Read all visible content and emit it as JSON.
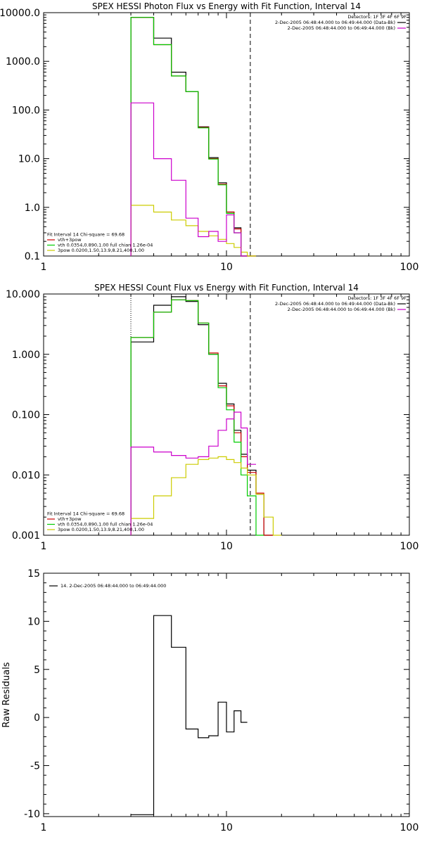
{
  "chart_data": [
    {
      "type": "line",
      "title": "SPEX HESSI Photon Flux vs Energy with Fit Function, Interval 14",
      "xscale": "log",
      "yscale": "log",
      "xlim": [
        1,
        100
      ],
      "ylim": [
        0.1,
        10000
      ],
      "xticks": [
        {
          "v": 1,
          "label": "1"
        },
        {
          "v": 10,
          "label": "10"
        },
        {
          "v": 100,
          "label": "100"
        }
      ],
      "yticks": [
        {
          "v": 0.1,
          "label": "0.1"
        },
        {
          "v": 1,
          "label": "1.0"
        },
        {
          "v": 10,
          "label": "10.0"
        },
        {
          "v": 100,
          "label": "100.0"
        },
        {
          "v": 1000,
          "label": "1000.0"
        },
        {
          "v": 10000,
          "label": "10000.0"
        }
      ],
      "vlines": [
        {
          "x": 3.0,
          "style": "dotted"
        },
        {
          "x": 13.5,
          "style": "dashed"
        }
      ],
      "legend_top_right": [
        {
          "text": "Detectors: 1F 3F 4F 6F 9F",
          "color": ""
        },
        {
          "text": "2-Dec-2005 06:48:44.000 to 06:49:44.000 (Data-Bk)",
          "color": "#000000"
        },
        {
          "text": "2-Dec-2005 06:48:44.000 to 06:49:44.000 (Bk)",
          "color": "#cc00cc"
        }
      ],
      "legend_bottom_left": [
        {
          "text": "Fit Interval 14    Chi-square = 69.68",
          "color": ""
        },
        {
          "text": "vth+3pow",
          "color": "#cc0000"
        },
        {
          "text": "vth 0.0354,0.890,1.00   full chian 1.26e-04",
          "color": "#00cc00"
        },
        {
          "text": "3pow 0.0200,1.50,13.9,8.21,400,1.00",
          "color": "#cccc00"
        }
      ],
      "edges": [
        3,
        4,
        5,
        6,
        7,
        8,
        9,
        10,
        11,
        12,
        13,
        14.5
      ],
      "series": [
        {
          "name": "Data-Bk",
          "color": "#000000",
          "values": [
            8000,
            3000,
            600,
            240,
            45,
            10.5,
            3.2,
            0.8,
            0.38,
            0.1,
            0.1
          ]
        },
        {
          "name": "vth+3pow",
          "color": "#cc0000",
          "values": [
            8000,
            2200,
            500,
            240,
            44,
            10,
            3.0,
            0.8,
            0.36,
            0.1,
            0.1
          ]
        },
        {
          "name": "vth",
          "color": "#00cc00",
          "values": [
            8000,
            2200,
            500,
            240,
            43,
            9.8,
            2.9,
            0.75,
            0.3,
            0.1,
            null
          ]
        },
        {
          "name": "3pow",
          "color": "#cccc00",
          "values": [
            1.1,
            0.8,
            0.55,
            0.42,
            0.32,
            0.26,
            0.22,
            0.18,
            0.15,
            0.12,
            0.1
          ]
        },
        {
          "name": "Bk",
          "color": "#cc00cc",
          "values": [
            140,
            10,
            3.6,
            0.6,
            0.25,
            0.32,
            0.2,
            0.7,
            0.3,
            0.1,
            null
          ]
        }
      ]
    },
    {
      "type": "line",
      "title": "SPEX HESSI Count Flux vs Energy with Fit Function, Interval 14",
      "xscale": "log",
      "yscale": "log",
      "xlim": [
        1,
        100
      ],
      "ylim": [
        0.001,
        10
      ],
      "xticks": [
        {
          "v": 1,
          "label": "1"
        },
        {
          "v": 10,
          "label": "10"
        },
        {
          "v": 100,
          "label": "100"
        }
      ],
      "yticks": [
        {
          "v": 0.001,
          "label": "0.001"
        },
        {
          "v": 0.01,
          "label": "0.010"
        },
        {
          "v": 0.1,
          "label": "0.100"
        },
        {
          "v": 1,
          "label": "1.000"
        },
        {
          "v": 10,
          "label": "10.000"
        }
      ],
      "vlines": [
        {
          "x": 3.0,
          "style": "dotted"
        },
        {
          "x": 13.5,
          "style": "dashed"
        }
      ],
      "legend_top_right": [
        {
          "text": "Detectors: 1F 3F 4F 6F 9F",
          "color": ""
        },
        {
          "text": "2-Dec-2005 06:48:44.000 to 06:49:44.000 (Data-Bk)",
          "color": "#000000"
        },
        {
          "text": "2-Dec-2005 06:48:44.000 to 06:49:44.000 (Bk)",
          "color": "#cc00cc"
        }
      ],
      "legend_bottom_left": [
        {
          "text": "Fit Interval 14    Chi-square = 69.68",
          "color": ""
        },
        {
          "text": "vth+3pow",
          "color": "#cc0000"
        },
        {
          "text": "vth 0.0354,0.890,1.00   full chian 1.26e-04",
          "color": "#00cc00"
        },
        {
          "text": "3pow 0.0200,1.50,13.9,8.21,400,1.00",
          "color": "#cccc00"
        }
      ],
      "edges": [
        3,
        4,
        5,
        6,
        7,
        8,
        9,
        10,
        11,
        12,
        13,
        14.5,
        16,
        18,
        20
      ],
      "series": [
        {
          "name": "Data-Bk",
          "color": "#000000",
          "values": [
            1.6,
            6.5,
            9.0,
            7.5,
            3.1,
            1.0,
            0.33,
            0.15,
            0.055,
            0.022,
            0.012,
            0.0048,
            0.001,
            null
          ]
        },
        {
          "name": "vth+3pow",
          "color": "#cc0000",
          "values": [
            1.9,
            5.0,
            8.0,
            7.8,
            3.3,
            1.05,
            0.3,
            0.14,
            0.05,
            0.02,
            0.011,
            0.005,
            0.001,
            null
          ]
        },
        {
          "name": "vth",
          "color": "#00cc00",
          "values": [
            1.9,
            5.0,
            8.0,
            7.8,
            3.3,
            1.0,
            0.28,
            0.12,
            0.035,
            0.01,
            0.0045,
            0.001,
            null,
            null
          ]
        },
        {
          "name": "3pow",
          "color": "#cccc00",
          "values": [
            0.0019,
            0.0045,
            0.009,
            0.015,
            0.018,
            0.019,
            0.02,
            0.018,
            0.016,
            0.013,
            0.01,
            0.0048,
            0.002,
            0.001
          ]
        },
        {
          "name": "Bk",
          "color": "#cc00cc",
          "values": [
            0.029,
            0.024,
            0.021,
            0.019,
            0.02,
            0.03,
            0.055,
            0.085,
            0.11,
            0.06,
            0.015,
            null,
            null,
            null
          ]
        }
      ]
    },
    {
      "type": "line",
      "title": "",
      "ylabel": "Raw Residuals",
      "xscale": "log",
      "yscale": "linear",
      "xlim": [
        1,
        100
      ],
      "ylim": [
        -10.3,
        15
      ],
      "xticks": [
        {
          "v": 1,
          "label": "1"
        },
        {
          "v": 10,
          "label": "10"
        },
        {
          "v": 100,
          "label": "100"
        }
      ],
      "yticks": [
        {
          "v": -10,
          "label": "-10"
        },
        {
          "v": -5,
          "label": "-5"
        },
        {
          "v": 0,
          "label": "0"
        },
        {
          "v": 5,
          "label": "5"
        },
        {
          "v": 10,
          "label": "10"
        },
        {
          "v": 15,
          "label": "15"
        }
      ],
      "legend_top_left": [
        {
          "text": "14.  2-Dec-2005 06:48:44.000 to 06:49:44.000",
          "color": "#000000"
        }
      ],
      "edges": [
        3,
        4,
        5,
        6,
        7,
        8,
        9,
        10,
        11,
        12,
        13
      ],
      "series": [
        {
          "name": "14.  2-Dec-2005 06:48:44.000 to 06:49:44.000",
          "color": "#000000",
          "values": [
            -10.1,
            10.6,
            7.3,
            -1.2,
            -2.1,
            -1.9,
            1.6,
            -1.5,
            0.7,
            -0.5
          ]
        }
      ]
    }
  ]
}
